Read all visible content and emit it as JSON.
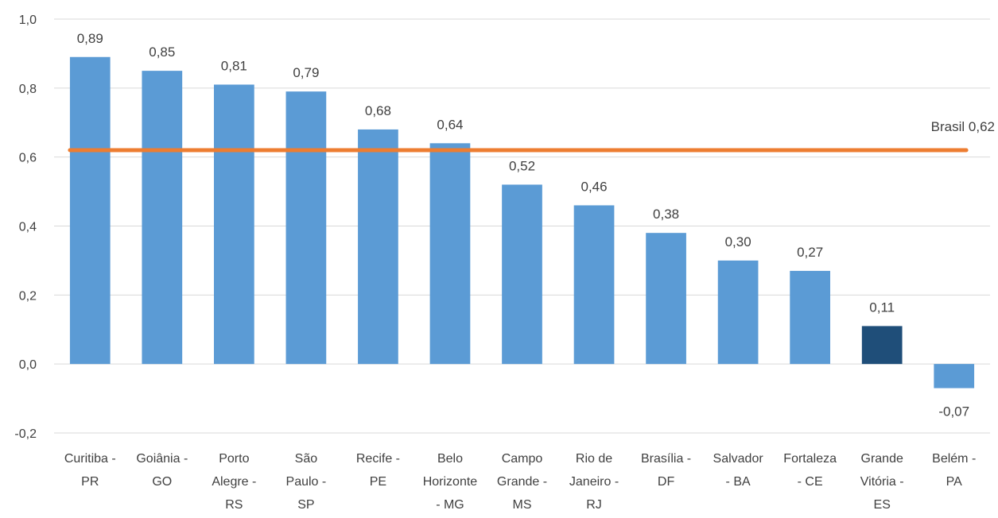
{
  "chart_data": {
    "type": "bar",
    "categories": [
      [
        "Curitiba -",
        "PR"
      ],
      [
        "Goiânia -",
        "GO"
      ],
      [
        "Porto",
        "Alegre -",
        "RS"
      ],
      [
        "São",
        "Paulo -",
        "SP"
      ],
      [
        "Recife -",
        "PE"
      ],
      [
        "Belo",
        "Horizonte",
        "- MG"
      ],
      [
        "Campo",
        "Grande -",
        "MS"
      ],
      [
        "Rio de",
        "Janeiro -",
        "RJ"
      ],
      [
        "Brasília -",
        "DF"
      ],
      [
        "Salvador",
        "- BA"
      ],
      [
        "Fortaleza",
        "- CE"
      ],
      [
        "Grande",
        "Vitória -",
        "ES"
      ],
      [
        "Belém -",
        "PA"
      ]
    ],
    "values": [
      0.89,
      0.85,
      0.81,
      0.79,
      0.68,
      0.64,
      0.52,
      0.46,
      0.38,
      0.3,
      0.27,
      0.11,
      -0.07
    ],
    "data_labels": [
      "0,89",
      "0,85",
      "0,81",
      "0,79",
      "0,68",
      "0,64",
      "0,52",
      "0,46",
      "0,38",
      "0,30",
      "0,27",
      "0,11",
      "-0,07"
    ],
    "highlight_index": 11,
    "colors": {
      "bar": "#5B9BD5",
      "highlight": "#1F4E79",
      "reference_line": "#ED7D31",
      "gridline": "#D9D9D9"
    },
    "reference_line": {
      "value": 0.62,
      "label": "Brasil 0,62"
    },
    "ylim": [
      -0.2,
      1.0
    ],
    "yticks": [
      -0.2,
      0.0,
      0.2,
      0.4,
      0.6,
      0.8,
      1.0
    ],
    "ytick_labels": [
      "-0,2",
      "0,0",
      "0,2",
      "0,4",
      "0,6",
      "0,8",
      "1,0"
    ],
    "grid": true,
    "title": "",
    "xlabel": "",
    "ylabel": ""
  }
}
